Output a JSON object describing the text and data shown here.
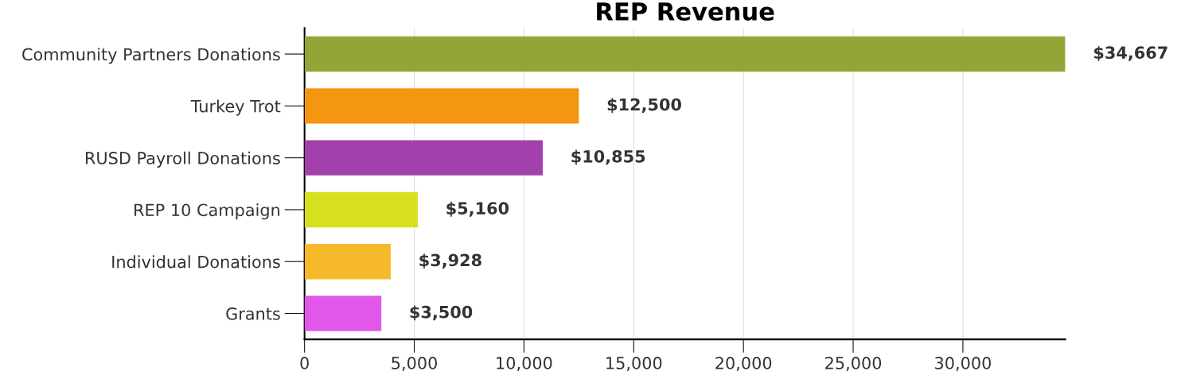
{
  "chart_data": {
    "type": "bar",
    "orientation": "horizontal",
    "title": "REP Revenue",
    "categories": [
      "Community Partners Donations",
      "Turkey Trot",
      "RUSD Payroll Donations",
      "REP 10 Campaign",
      "Individual Donations",
      "Grants"
    ],
    "values": [
      34667,
      12500,
      10855,
      5160,
      3928,
      3500
    ],
    "colors": [
      "#93a537",
      "#f4960f",
      "#a241ab",
      "#d6e01f",
      "#f6b92b",
      "#e157ea"
    ],
    "value_labels": [
      "$34,667",
      "$12,500",
      "$10,855",
      "$5,160",
      "$3,928",
      "$3,500"
    ],
    "xlim": [
      0,
      34667
    ],
    "xticks": [
      0,
      {
        "value": 5000,
        "label": "5,000"
      },
      {
        "value": 10000,
        "label": "10,000"
      },
      {
        "value": 15000,
        "label": "15,000"
      },
      {
        "value": 20000,
        "label": "20,000"
      },
      {
        "value": 25000,
        "label": "25,000"
      },
      {
        "value": 30000,
        "label": "30,000"
      }
    ],
    "grid": "x",
    "legend": false
  }
}
